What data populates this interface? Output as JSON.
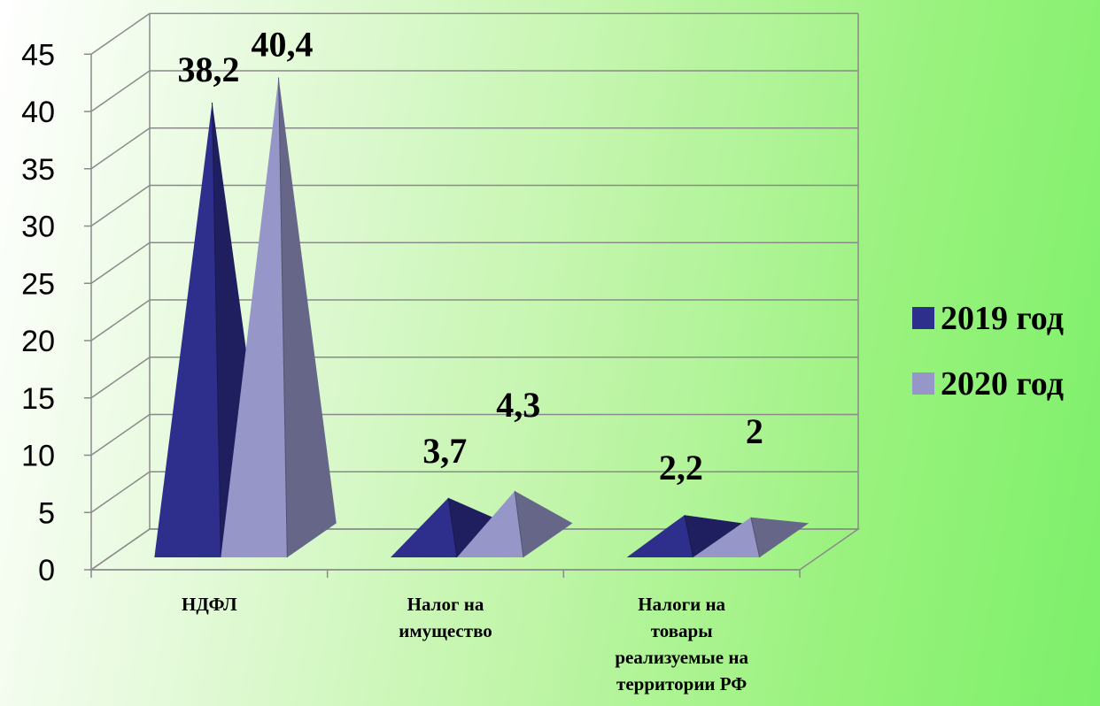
{
  "chart_data": {
    "type": "bar",
    "style": "3d-pyramid",
    "title": "",
    "xlabel": "",
    "ylabel": "",
    "ylim": [
      0,
      45
    ],
    "yticks": [
      0,
      5,
      10,
      15,
      20,
      25,
      30,
      35,
      40,
      45
    ],
    "grid": true,
    "legend_position": "right",
    "categories": [
      [
        "НДФЛ"
      ],
      [
        "Налог на",
        "имущество"
      ],
      [
        "Налоги на",
        "товары",
        "реализуемые на",
        "территории РФ"
      ]
    ],
    "series": [
      {
        "name": "2019 год",
        "values": [
          38.2,
          3.7,
          2.2
        ],
        "labels": [
          "38,2",
          "3,7",
          "2,2"
        ],
        "color": "#2e2e8c"
      },
      {
        "name": "2020 год",
        "values": [
          40.4,
          4.3,
          2.0
        ],
        "labels": [
          "40,4",
          "4,3",
          "2"
        ],
        "color": "#9696c8"
      }
    ]
  }
}
